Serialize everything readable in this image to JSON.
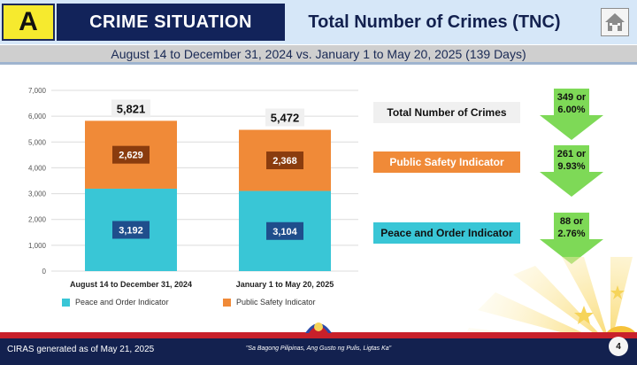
{
  "header": {
    "badge": "A",
    "title_left": "CRIME SITUATION",
    "title_right": "Total Number of Crimes (TNC)",
    "subtitle": "August 14 to December 31, 2024 vs. January 1 to May 20, 2025 (139 Days)"
  },
  "chart_data": {
    "type": "bar",
    "stacked": true,
    "categories": [
      "August 14 to December 31, 2024",
      "January 1 to May 20, 2025"
    ],
    "series": [
      {
        "name": "Peace and Order Indicator",
        "values": [
          3192,
          3104
        ],
        "color": "#39c6d6"
      },
      {
        "name": "Public Safety Indicator",
        "values": [
          2629,
          2368
        ],
        "color": "#f08a38"
      }
    ],
    "totals": [
      5821,
      5472
    ],
    "total_labels": [
      "5,821",
      "5,472"
    ],
    "value_labels": [
      [
        "3,192",
        "3,104"
      ],
      [
        "2,629",
        "2,368"
      ]
    ],
    "ylim": [
      0,
      7000
    ],
    "yticks": [
      0,
      1000,
      2000,
      3000,
      4000,
      5000,
      6000,
      7000
    ],
    "ytick_labels": [
      "0",
      "1,000",
      "2,000",
      "3,000",
      "4,000",
      "5,000",
      "6,000",
      "7,000"
    ],
    "legend_position": "bottom",
    "grid": true
  },
  "legend": {
    "peace": "Peace and Order Indicator",
    "safety": "Public Safety Indicator"
  },
  "indicators": {
    "tnc": {
      "label": "Total Number of Crimes",
      "change_line1": "349 or",
      "change_line2": "6.00%"
    },
    "public_safety": {
      "label": "Public Safety Indicator",
      "change_line1": "261 or",
      "change_line2": "9.93%"
    },
    "peace_order": {
      "label": "Peace and Order Indicator",
      "change_line1": "88 or",
      "change_line2": "2.76%"
    }
  },
  "footer": {
    "left": "CIRAS generated as of May 21, 2025",
    "middle": "\"Sa Bagong Pilipinas, Ang Gusto ng Pulis, Ligtas Ka\"",
    "page": "4"
  },
  "colors": {
    "navy": "#12235a",
    "yellow": "#f6ea2e",
    "arrow_green": "#7ed957",
    "red": "#c8202a"
  }
}
